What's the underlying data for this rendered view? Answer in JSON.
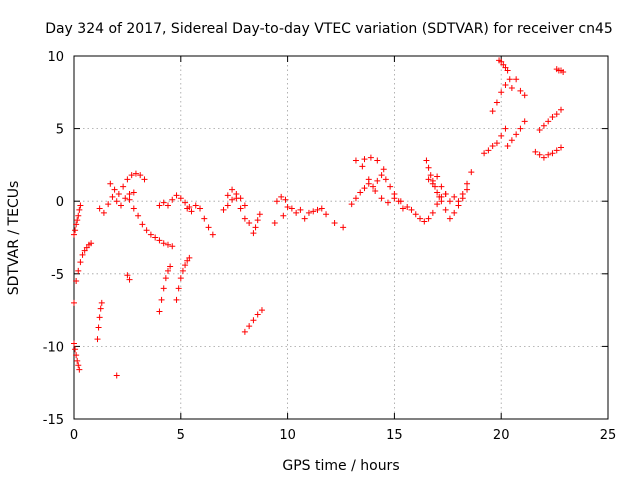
{
  "chart_data": {
    "type": "scatter",
    "title": "Day 324 of 2017, Sidereal Day-to-day VTEC variation (SDTVAR) for receiver cn45",
    "xlabel": "GPS time / hours",
    "ylabel": "SDTVAR / TECUs",
    "xlim": [
      0,
      25
    ],
    "ylim": [
      -15,
      10
    ],
    "xticks": [
      0,
      5,
      10,
      15,
      20,
      25
    ],
    "yticks": [
      -15,
      -10,
      -5,
      0,
      5,
      10
    ],
    "xtick_labels": [
      "0",
      "5",
      "10",
      "15",
      "20",
      "25"
    ],
    "ytick_labels": [
      "-15",
      "-10",
      "-5",
      "0",
      "5",
      "10"
    ],
    "grid": true,
    "marker": "+",
    "color": "#ff0000",
    "series": [
      {
        "name": "arc01",
        "x": [
          0.0,
          0.1,
          0.2,
          0.3,
          0.4,
          0.5,
          0.6,
          0.7,
          0.8
        ],
        "y": [
          -7.0,
          -5.5,
          -4.8,
          -4.2,
          -3.7,
          -3.4,
          -3.2,
          -3.0,
          -2.9
        ]
      },
      {
        "name": "arc02",
        "x": [
          0.0,
          0.05,
          0.1,
          0.15,
          0.2,
          0.25,
          0.3
        ],
        "y": [
          -2.3,
          -2.0,
          -1.6,
          -1.3,
          -1.0,
          -0.6,
          -0.3
        ]
      },
      {
        "name": "arc03",
        "x": [
          0.0,
          0.05,
          0.1,
          0.15,
          0.2,
          0.25
        ],
        "y": [
          -9.8,
          -10.2,
          -10.6,
          -11.0,
          -11.3,
          -11.6
        ]
      },
      {
        "name": "arc04",
        "x": [
          1.1,
          1.15,
          1.2,
          1.25,
          1.3
        ],
        "y": [
          -9.5,
          -8.7,
          -8.0,
          -7.4,
          -7.0
        ]
      },
      {
        "name": "arc05",
        "x": [
          1.2,
          1.4,
          1.6,
          1.8,
          2.0,
          2.2,
          2.4,
          2.6,
          2.8
        ],
        "y": [
          -0.5,
          -0.8,
          -0.2,
          0.3,
          0.0,
          -0.3,
          0.2,
          0.5,
          0.6
        ]
      },
      {
        "name": "arc06",
        "x": [
          1.7,
          1.9,
          2.1,
          2.3,
          2.5,
          2.7,
          2.9,
          3.1,
          3.3
        ],
        "y": [
          1.2,
          0.8,
          0.5,
          1.0,
          1.5,
          1.8,
          1.9,
          1.8,
          1.5
        ]
      },
      {
        "name": "arc07",
        "x": [
          2.6,
          2.8,
          3.0,
          3.2,
          3.4,
          3.6,
          3.8,
          4.0,
          4.2,
          4.4,
          4.6
        ],
        "y": [
          0.1,
          -0.5,
          -1.0,
          -1.6,
          -2.0,
          -2.3,
          -2.5,
          -2.7,
          -2.9,
          -3.0,
          -3.1
        ]
      },
      {
        "name": "arc08",
        "x": [
          2.5,
          2.6
        ],
        "y": [
          -5.1,
          -5.4
        ]
      },
      {
        "name": "arc09",
        "x": [
          2.0
        ],
        "y": [
          -12.0
        ]
      },
      {
        "name": "arc10",
        "x": [
          4.0,
          4.1,
          4.2,
          4.3,
          4.4,
          4.5
        ],
        "y": [
          -7.6,
          -6.8,
          -6.0,
          -5.3,
          -4.8,
          -4.5
        ]
      },
      {
        "name": "arc11",
        "x": [
          4.8,
          4.9,
          5.0,
          5.1,
          5.2,
          5.3,
          5.4
        ],
        "y": [
          -6.8,
          -6.0,
          -5.3,
          -4.8,
          -4.4,
          -4.1,
          -3.9
        ]
      },
      {
        "name": "arc12",
        "x": [
          4.0,
          4.2,
          4.4,
          4.6,
          4.8,
          5.0,
          5.2,
          5.4
        ],
        "y": [
          -0.3,
          -0.1,
          -0.3,
          0.1,
          0.4,
          0.2,
          -0.1,
          -0.4
        ]
      },
      {
        "name": "arc13",
        "x": [
          5.3,
          5.5,
          5.7,
          5.9,
          6.1,
          6.3,
          6.5
        ],
        "y": [
          -0.5,
          -0.7,
          -0.3,
          -0.5,
          -1.2,
          -1.8,
          -2.3
        ]
      },
      {
        "name": "arc14",
        "x": [
          7.0,
          7.2,
          7.4,
          7.6,
          7.8,
          8.0
        ],
        "y": [
          -0.6,
          -0.3,
          0.1,
          0.5,
          0.2,
          -0.3
        ]
      },
      {
        "name": "arc15",
        "x": [
          7.2,
          7.4,
          7.6,
          7.8,
          8.0,
          8.2
        ],
        "y": [
          0.4,
          0.8,
          0.2,
          -0.5,
          -1.2,
          -1.5
        ]
      },
      {
        "name": "arc16",
        "x": [
          8.4,
          8.5,
          8.6,
          8.7
        ],
        "y": [
          -2.2,
          -1.8,
          -1.3,
          -0.9
        ]
      },
      {
        "name": "arc17",
        "x": [
          8.0,
          8.2,
          8.4,
          8.6,
          8.8
        ],
        "y": [
          -9.0,
          -8.6,
          -8.2,
          -7.8,
          -7.5
        ]
      },
      {
        "name": "arc18",
        "x": [
          9.5,
          9.7,
          9.9
        ],
        "y": [
          0.0,
          0.3,
          0.1
        ]
      },
      {
        "name": "arc19",
        "x": [
          9.4,
          9.8,
          10.2,
          10.6,
          11.0,
          11.4,
          11.8,
          12.2,
          12.6
        ],
        "y": [
          -1.5,
          -1.0,
          -0.5,
          -0.6,
          -0.8,
          -0.6,
          -0.9,
          -1.5,
          -1.8
        ]
      },
      {
        "name": "arc20",
        "x": [
          10.0,
          10.4,
          10.8,
          11.2,
          11.6
        ],
        "y": [
          -0.4,
          -0.8,
          -1.2,
          -0.7,
          -0.5
        ]
      },
      {
        "name": "arc21",
        "x": [
          13.0,
          13.2,
          13.4,
          13.6,
          13.8,
          14.0,
          14.2,
          14.4,
          14.6,
          14.8,
          15.0,
          15.2,
          15.4
        ],
        "y": [
          -0.2,
          0.2,
          0.6,
          0.9,
          1.2,
          1.0,
          1.4,
          1.8,
          1.5,
          1.0,
          0.5,
          0.0,
          -0.5
        ]
      },
      {
        "name": "arc22",
        "x": [
          13.2,
          13.5,
          13.8,
          14.1,
          14.4,
          14.7,
          15.0,
          15.3
        ],
        "y": [
          2.8,
          2.4,
          1.5,
          0.7,
          0.2,
          -0.1,
          0.2,
          0.0
        ]
      },
      {
        "name": "arc23",
        "x": [
          13.6,
          13.9,
          14.2,
          14.5
        ],
        "y": [
          2.9,
          3.0,
          2.8,
          2.2
        ]
      },
      {
        "name": "arc24",
        "x": [
          15.6,
          15.8,
          16.0,
          16.2,
          16.4,
          16.6,
          16.8,
          17.0,
          17.2,
          17.4
        ],
        "y": [
          -0.4,
          -0.6,
          -0.9,
          -1.2,
          -1.4,
          -1.2,
          -0.8,
          -0.2,
          0.3,
          0.5
        ]
      },
      {
        "name": "arc25",
        "x": [
          16.5,
          16.6,
          16.7,
          16.8,
          16.9,
          17.0,
          17.1,
          17.2
        ],
        "y": [
          2.8,
          2.3,
          1.8,
          1.4,
          1.0,
          0.6,
          0.3,
          0.0
        ]
      },
      {
        "name": "arc26",
        "x": [
          16.6,
          16.8,
          17.0,
          17.2,
          17.4
        ],
        "y": [
          1.5,
          1.2,
          1.7,
          1.0,
          0.5
        ]
      },
      {
        "name": "arc27",
        "x": [
          17.4,
          17.6,
          17.8,
          18.0,
          18.2,
          18.4,
          18.6
        ],
        "y": [
          -0.6,
          0.0,
          0.3,
          0.0,
          0.5,
          1.2,
          2.0
        ]
      },
      {
        "name": "arc28",
        "x": [
          17.6,
          17.8,
          18.0,
          18.2,
          18.4
        ],
        "y": [
          -1.2,
          -0.8,
          -0.3,
          0.2,
          0.8
        ]
      },
      {
        "name": "arc29",
        "x": [
          19.2,
          19.4,
          19.6,
          19.8,
          20.0,
          20.2
        ],
        "y": [
          3.3,
          3.5,
          3.8,
          4.0,
          4.5,
          5.0
        ]
      },
      {
        "name": "arc30",
        "x": [
          19.6,
          19.8,
          20.0,
          20.2,
          20.4
        ],
        "y": [
          6.2,
          6.8,
          7.5,
          8.0,
          8.4
        ]
      },
      {
        "name": "arc31",
        "x": [
          19.9,
          20.0,
          20.1,
          20.2,
          20.3
        ],
        "y": [
          9.7,
          9.6,
          9.4,
          9.2,
          9.0
        ]
      },
      {
        "name": "arc32",
        "x": [
          20.3,
          20.5,
          20.7,
          20.9,
          21.1
        ],
        "y": [
          3.8,
          4.2,
          4.6,
          5.0,
          5.5
        ]
      },
      {
        "name": "arc33",
        "x": [
          20.5,
          20.7,
          20.9,
          21.1
        ],
        "y": [
          7.8,
          8.4,
          7.6,
          7.3
        ]
      },
      {
        "name": "arc34",
        "x": [
          21.6,
          21.8,
          22.0,
          22.2,
          22.4,
          22.6,
          22.8
        ],
        "y": [
          3.4,
          3.2,
          3.0,
          3.2,
          3.3,
          3.5,
          3.7
        ]
      },
      {
        "name": "arc35",
        "x": [
          21.8,
          22.0,
          22.2,
          22.4,
          22.6,
          22.8
        ],
        "y": [
          4.9,
          5.2,
          5.5,
          5.8,
          6.0,
          6.3
        ]
      },
      {
        "name": "arc36",
        "x": [
          22.6,
          22.7,
          22.8,
          22.9
        ],
        "y": [
          9.1,
          9.0,
          9.0,
          8.9
        ]
      }
    ]
  }
}
